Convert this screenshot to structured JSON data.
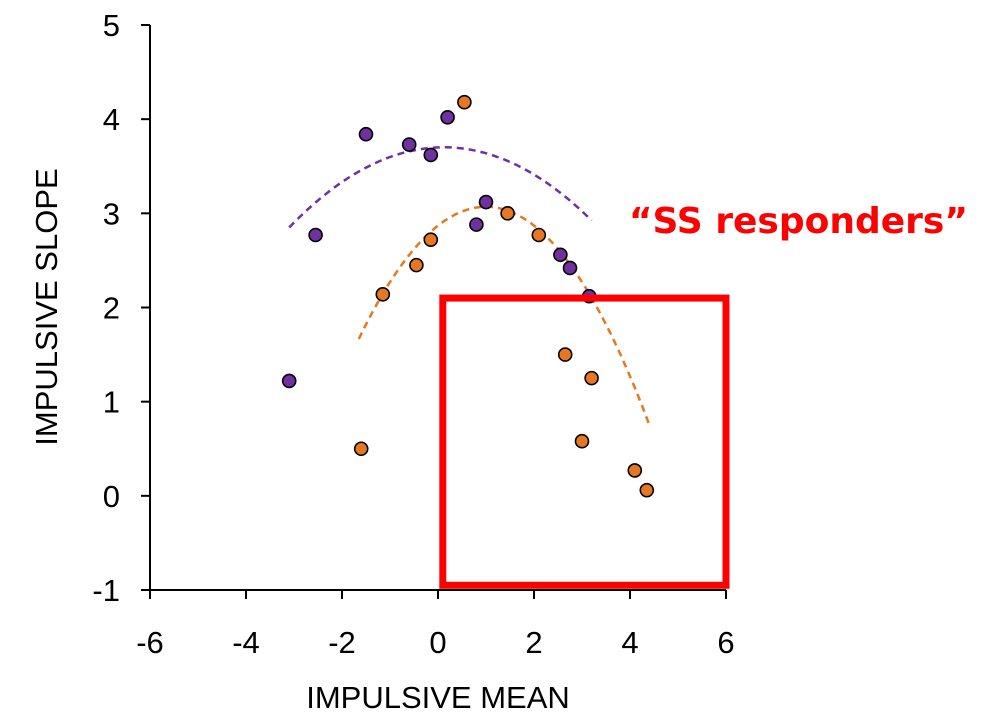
{
  "chart_data": {
    "type": "scatter",
    "title": "",
    "xlabel": "IMPULSIVE MEAN",
    "ylabel": "IMPULSIVE SLOPE",
    "xlim": [
      -6,
      6
    ],
    "ylim": [
      -1,
      5
    ],
    "xticks": [
      "-6",
      "-4",
      "-2",
      "0",
      "2",
      "4",
      "6"
    ],
    "yticks": [
      "-1",
      "0",
      "1",
      "2",
      "3",
      "4",
      "5"
    ],
    "grid": false,
    "legend": "none",
    "series": [
      {
        "color": "#7030a0",
        "points": [
          [
            -3.1,
            1.22
          ],
          [
            -2.55,
            2.77
          ],
          [
            -1.5,
            3.84
          ],
          [
            -0.6,
            3.73
          ],
          [
            -0.15,
            3.62
          ],
          [
            0.2,
            4.02
          ],
          [
            0.8,
            2.88
          ],
          [
            1.0,
            3.12
          ],
          [
            2.55,
            2.56
          ],
          [
            2.75,
            2.42
          ],
          [
            3.15,
            2.12
          ]
        ],
        "trendline": {
          "coef": [
            -0.082,
            0.02,
            3.7
          ],
          "x_range": [
            -3.1,
            3.2
          ],
          "dashed": true
        }
      },
      {
        "color": "#e87722",
        "points": [
          [
            -1.6,
            0.5
          ],
          [
            -1.15,
            2.14
          ],
          [
            -0.45,
            2.45
          ],
          [
            -0.15,
            2.72
          ],
          [
            0.55,
            4.18
          ],
          [
            1.45,
            3.0
          ],
          [
            2.1,
            2.77
          ],
          [
            2.65,
            1.5
          ],
          [
            3.0,
            0.58
          ],
          [
            3.2,
            1.25
          ],
          [
            4.1,
            0.27
          ],
          [
            4.35,
            0.06
          ]
        ],
        "trendline": {
          "coef": [
            -0.2,
            0.4,
            2.87
          ],
          "x_range": [
            -1.65,
            4.4
          ],
          "dashed": true
        }
      }
    ],
    "annotations": [
      {
        "text": "“SS responders”",
        "color": "#ff0000"
      }
    ],
    "highlight_box": {
      "x": [
        0.1,
        6.0
      ],
      "y": [
        -0.95,
        2.1
      ],
      "color": "#ff0000"
    }
  }
}
